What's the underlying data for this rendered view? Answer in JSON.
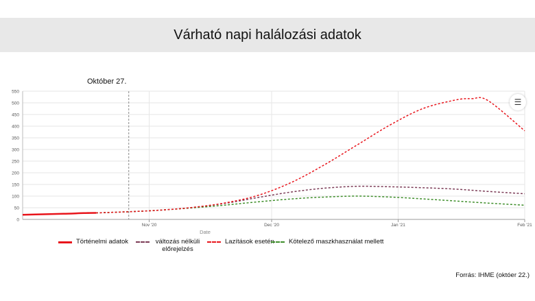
{
  "header": {
    "title": "Várható napi halálozási adatok"
  },
  "annotation": {
    "label": "Október 27."
  },
  "source": "Forrás: IHME (októer 22.)",
  "menu": {
    "icon": "hamburger-icon"
  },
  "chart_data": {
    "type": "line",
    "xlabel": "Date",
    "ylabel": "",
    "ylim": [
      0,
      550
    ],
    "yticks": [
      0,
      50,
      100,
      150,
      200,
      250,
      300,
      350,
      400,
      450,
      500,
      550
    ],
    "xlim": [
      "2020-10-01",
      "2021-02-01"
    ],
    "xticks": [
      {
        "date": "2020-11-01",
        "label": "Nov '20"
      },
      {
        "date": "2020-12-01",
        "label": "Dec '20"
      },
      {
        "date": "2021-01-01",
        "label": "Jan '21"
      },
      {
        "date": "2021-02-01",
        "label": "Feb '21"
      }
    ],
    "vline": {
      "date": "2020-10-27"
    },
    "grid": true,
    "legend_position": "bottom",
    "series": [
      {
        "name": "Történelmi adatok",
        "color": "#e8141b",
        "dash": "solid",
        "points": [
          [
            "2020-10-01",
            20
          ],
          [
            "2020-10-06",
            22
          ],
          [
            "2020-10-11",
            24
          ],
          [
            "2020-10-16",
            27
          ],
          [
            "2020-10-19",
            28
          ]
        ]
      },
      {
        "name": "változás nélküli előrejelzés",
        "color": "#7b3a55",
        "dash": "dashed",
        "points": [
          [
            "2020-10-19",
            28
          ],
          [
            "2020-10-27",
            33
          ],
          [
            "2020-11-04",
            40
          ],
          [
            "2020-11-12",
            52
          ],
          [
            "2020-11-20",
            70
          ],
          [
            "2020-11-28",
            95
          ],
          [
            "2020-12-06",
            118
          ],
          [
            "2020-12-14",
            134
          ],
          [
            "2020-12-22",
            142
          ],
          [
            "2020-12-30",
            140
          ],
          [
            "2021-01-07",
            136
          ],
          [
            "2021-01-15",
            130
          ],
          [
            "2021-01-23",
            120
          ],
          [
            "2021-02-01",
            110
          ]
        ]
      },
      {
        "name": "Lazítások esetén",
        "color": "#e8141b",
        "dash": "dashed",
        "points": [
          [
            "2020-10-19",
            28
          ],
          [
            "2020-10-27",
            33
          ],
          [
            "2020-11-04",
            40
          ],
          [
            "2020-11-12",
            52
          ],
          [
            "2020-11-20",
            72
          ],
          [
            "2020-11-28",
            105
          ],
          [
            "2020-12-06",
            160
          ],
          [
            "2020-12-14",
            235
          ],
          [
            "2020-12-22",
            320
          ],
          [
            "2020-12-30",
            405
          ],
          [
            "2021-01-07",
            475
          ],
          [
            "2021-01-15",
            512
          ],
          [
            "2021-01-19",
            518
          ],
          [
            "2021-01-23",
            510
          ],
          [
            "2021-02-01",
            380
          ]
        ]
      },
      {
        "name": "Kötelező maszkhasználat mellett",
        "color": "#3e8e2a",
        "dash": "dashed",
        "points": [
          [
            "2020-10-19",
            28
          ],
          [
            "2020-10-27",
            33
          ],
          [
            "2020-11-04",
            40
          ],
          [
            "2020-11-12",
            50
          ],
          [
            "2020-11-20",
            62
          ],
          [
            "2020-11-28",
            76
          ],
          [
            "2020-12-06",
            88
          ],
          [
            "2020-12-14",
            96
          ],
          [
            "2020-12-22",
            100
          ],
          [
            "2020-12-30",
            96
          ],
          [
            "2021-01-07",
            88
          ],
          [
            "2021-01-15",
            79
          ],
          [
            "2021-01-23",
            70
          ],
          [
            "2021-02-01",
            61
          ]
        ]
      }
    ]
  }
}
